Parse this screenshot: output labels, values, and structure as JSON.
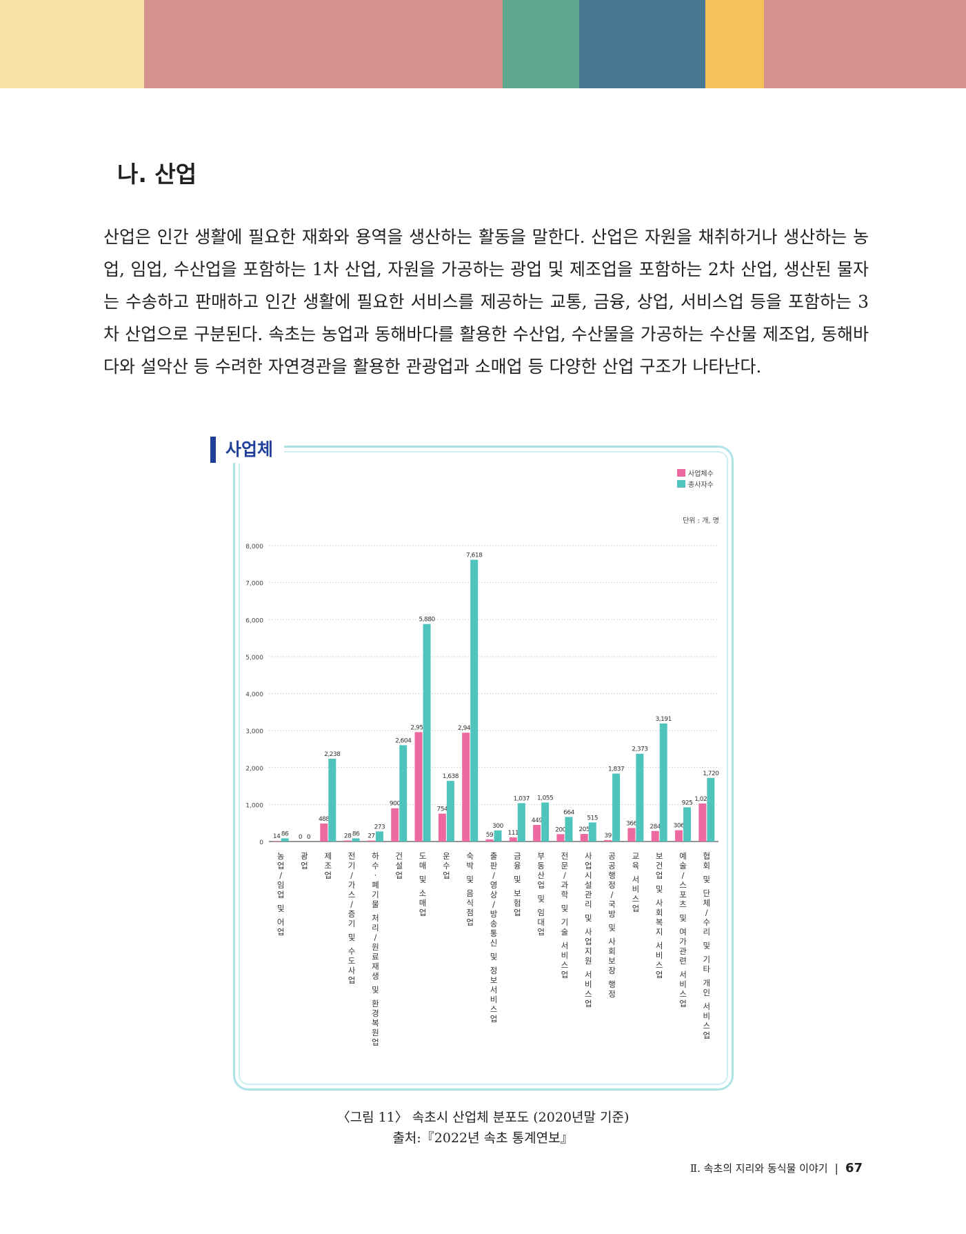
{
  "header_band": {
    "colors": [
      "#f9e0a6",
      "#d4938f",
      "#5ea78c",
      "#4a7890",
      "#f3c35a",
      "#d4938f"
    ]
  },
  "section_title": "나. 산업",
  "body_paragraph": "산업은 인간 생활에 필요한 재화와 용역을 생산하는 활동을 말한다. 산업은 자원을 채취하거나 생산하는 농업, 임업, 수산업을 포함하는 1차 산업, 자원을 가공하는 광업 및 제조업을 포함하는 2차 산업, 생산된 물자는 수송하고 판매하고 인간 생활에 필요한 서비스를 제공하는 교통, 금융, 상업, 서비스업 등을 포함하는 3차 산업으로 구분된다. 속초는 농업과 동해바다를 활용한 수산업, 수산물을 가공하는 수산물 제조업, 동해바다와 설악산 등 수려한 자연경관을 활용한 관광업과 소매업 등 다양한 산업 구조가 나타난다.",
  "chart_badge": "사업체",
  "chart_data": {
    "type": "bar",
    "unit_label": "단위 : 개, 명",
    "ylim": [
      0,
      8000
    ],
    "yticks": [
      "0",
      "1,000",
      "2,000",
      "3,000",
      "4,000",
      "5,000",
      "6,000",
      "7,000",
      "8,000"
    ],
    "grid": true,
    "legend_position": "top-right",
    "categories": [
      "농업/임업 및 어업",
      "광업",
      "제조업",
      "전기/가스/증기 및 수도사업",
      "하수·폐기물 처리/원료재생 및 환경복원업",
      "건설업",
      "도매 및 소매업",
      "운수업",
      "숙박 및 음식점업",
      "출판/영상/방송통신 및 정보서비스업",
      "금융 및 보험업",
      "부동산업 및 임대업",
      "전문/과학 및 기술 서비스업",
      "사업시설관리 및 사업지원 서비스업",
      "공공행정/국방 및 사회보장 행정",
      "교육 서비스업",
      "보건업 및 사회복지 서비스업",
      "예술/스포츠 및 여가관련 서비스업",
      "협회 및 단체/수리 및 기타 개인 서비스업"
    ],
    "series": [
      {
        "name": "사업체수",
        "color": "#ec6aa0",
        "values": [
          14,
          0,
          488,
          28,
          27,
          900,
          2958,
          754,
          2942,
          59,
          111,
          449,
          200,
          205,
          39,
          366,
          284,
          306,
          1028
        ],
        "labels": [
          "14",
          "0",
          "488",
          "28",
          "27",
          "900",
          "2,958",
          "754",
          "2,942",
          "59",
          "111",
          "449",
          "200",
          "205",
          "39",
          "366",
          "284",
          "306",
          "1,028"
        ]
      },
      {
        "name": "종사자수",
        "color": "#4fc4bd",
        "values": [
          86,
          0,
          2238,
          86,
          273,
          2604,
          5880,
          1638,
          7618,
          300,
          1037,
          1055,
          664,
          515,
          1837,
          2373,
          3191,
          925,
          1720
        ],
        "labels": [
          "86",
          "0",
          "2,238",
          "86",
          "273",
          "2,604",
          "5,880",
          "1,638",
          "7,618",
          "300",
          "1,037",
          "1,055",
          "664",
          "515",
          "1,837",
          "2,373",
          "3,191",
          "925",
          "1,720"
        ]
      }
    ]
  },
  "caption": {
    "line1": "〈그림 11〉 속초시 산업체 분포도 (2020년말 기준)",
    "line2": "출처:『2022년 속초 통계연보』"
  },
  "footer": {
    "chapter": "Ⅱ. 속초의 지리와 동식물 이야기",
    "separator": "|",
    "page_number": "67"
  }
}
